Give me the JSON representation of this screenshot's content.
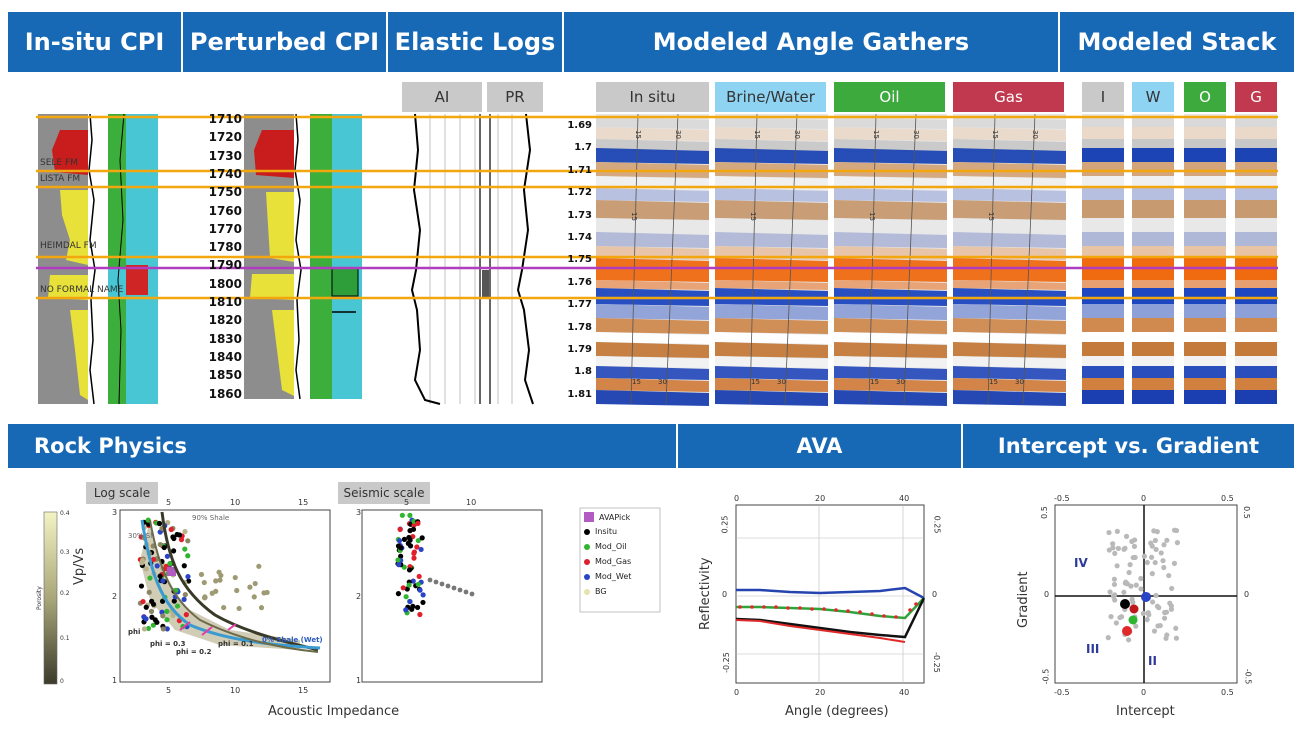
{
  "headers": {
    "insitu_cpi": "In-situ CPI",
    "perturbed_cpi": "Perturbed CPI",
    "elastic_logs": "Elastic Logs",
    "modeled_angle_gathers": "Modeled Angle Gathers",
    "modeled_stack": "Modeled Stack",
    "rock_physics": "Rock Physics",
    "ava": "AVA",
    "intercept_gradient": "Intercept vs. Gradient"
  },
  "elastic_tags": [
    "AI",
    "PR"
  ],
  "gather_tags": [
    {
      "label": "In situ",
      "color": "#c9c9c9",
      "text_color": "#333333"
    },
    {
      "label": "Brine/Water",
      "color": "#8fd3f2",
      "text_color": "#333333"
    },
    {
      "label": "Oil",
      "color": "#3daa3d",
      "text_color": "#ffffff"
    },
    {
      "label": "Gas",
      "color": "#c1394f",
      "text_color": "#ffffff"
    }
  ],
  "stack_tags": [
    {
      "label": "I",
      "color": "#c9c9c9",
      "text_color": "#333333"
    },
    {
      "label": "W",
      "color": "#8fd3f2",
      "text_color": "#333333"
    },
    {
      "label": "O",
      "color": "#3daa3d",
      "text_color": "#ffffff"
    },
    {
      "label": "G",
      "color": "#c1394f",
      "text_color": "#ffffff"
    }
  ],
  "depth_ticks": [
    "1710",
    "1720",
    "1730",
    "1740",
    "1750",
    "1760",
    "1770",
    "1780",
    "1790",
    "1800",
    "1810",
    "1820",
    "1830",
    "1840",
    "1850",
    "1860"
  ],
  "time_ticks": [
    "1.69",
    "1.7",
    "1.71",
    "1.72",
    "1.73",
    "1.74",
    "1.75",
    "1.76",
    "1.77",
    "1.78",
    "1.79",
    "1.8",
    "1.81"
  ],
  "formation_labels": [
    "SELE FM",
    "LISTA FM",
    "HEIMDAL FM",
    "NO FORMAL NAME"
  ],
  "gather_angle_labels": [
    "15",
    "30"
  ],
  "rock_physics": {
    "log_scale_tag": "Log scale",
    "seismic_scale_tag": "Seismic scale",
    "ylabel": "Vp/Vs",
    "xlabel": "Acoustic Impedance",
    "colorbar_label": "Porosity",
    "colorbar_ticks": [
      "0.4",
      "0.3",
      "0.2",
      "0.1",
      "0"
    ],
    "x_ticks": [
      "5",
      "10",
      "15"
    ],
    "seis_x_ticks": [
      "5",
      "10"
    ],
    "y_ticks": [
      "3",
      "2",
      "1"
    ],
    "annotations": [
      "90% Shale",
      "30% Sh",
      "0% Shale (Wet)",
      "phi = 0.3",
      "phi = 0.2",
      "phi = 0.1",
      "phi"
    ],
    "legend": [
      {
        "label": "AVAPick",
        "color": "#b05cc0"
      },
      {
        "label": "Insitu",
        "color": "#000000"
      },
      {
        "label": "Mod_Oil",
        "color": "#2fb52f"
      },
      {
        "label": "Mod_Gas",
        "color": "#e0202a"
      },
      {
        "label": "Mod_Wet",
        "color": "#2a44c8"
      },
      {
        "label": "BG",
        "color": "#e8e4a8"
      }
    ]
  },
  "ava": {
    "xlabel": "Angle (degrees)",
    "ylabel": "Reflectivity",
    "x_ticks": [
      "0",
      "20",
      "40"
    ],
    "y_ticks": [
      "0.25",
      "0",
      "-0.25"
    ]
  },
  "ig": {
    "xlabel": "Intercept",
    "ylabel": "Gradient",
    "x_ticks": [
      "-0.5",
      "0",
      "0.5"
    ],
    "y_ticks": [
      "0.5",
      "0",
      "-0.5"
    ],
    "quadrants": [
      "IV",
      "III",
      "II"
    ]
  }
}
